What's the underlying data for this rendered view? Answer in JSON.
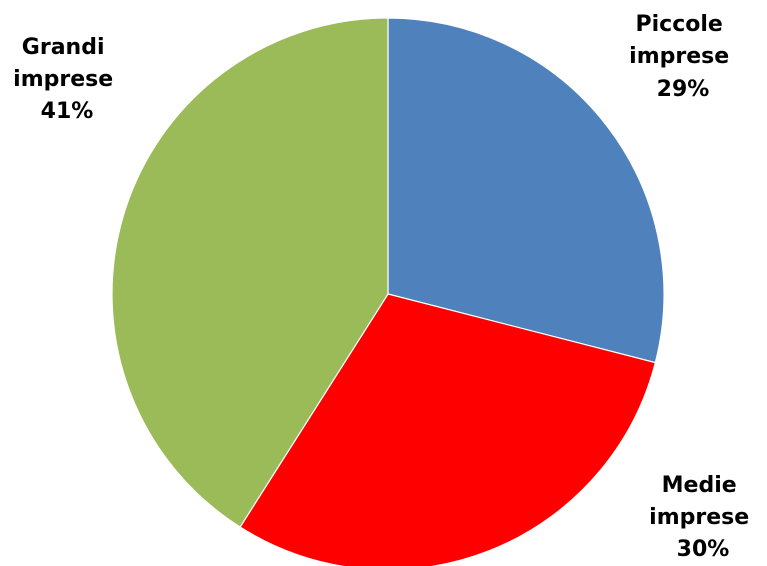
{
  "chart_data": {
    "type": "pie",
    "title": "",
    "slices": [
      {
        "label_line1": "Piccole",
        "label_line2": "imprese",
        "percent_text": "29%",
        "value": 29,
        "color": "#4f81bd"
      },
      {
        "label_line1": "Medie",
        "label_line2": "imprese",
        "percent_text": "30%",
        "value": 30,
        "color": "#ff0000"
      },
      {
        "label_line1": "Grandi",
        "label_line2": "imprese",
        "percent_text": "41%",
        "value": 41,
        "color": "#9bbb59"
      }
    ],
    "start_angle_deg": 0,
    "direction": "clockwise",
    "legend": "none",
    "data_labels": "outside"
  }
}
